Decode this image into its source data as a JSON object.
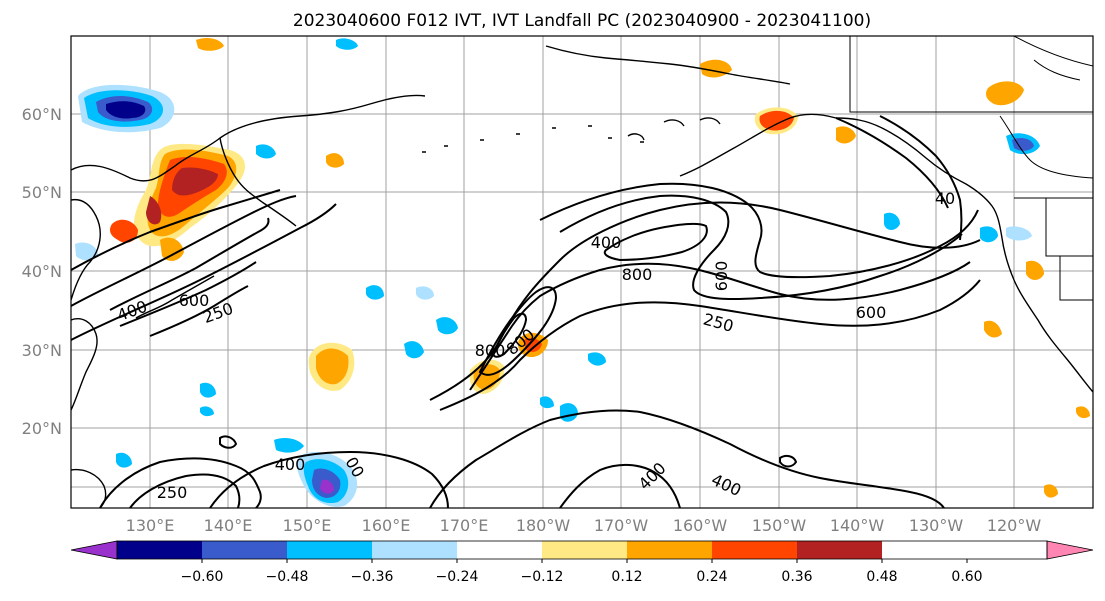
{
  "title": "2023040600 F012 IVT, IVT Landfall PC (2023040900 - 2023041100)",
  "lat_labels": [
    "60°N",
    "50°N",
    "40°N",
    "30°N",
    "20°N"
  ],
  "lon_labels": [
    "130°E",
    "140°E",
    "150°E",
    "160°E",
    "170°E",
    "180°W",
    "170°W",
    "160°W",
    "150°W",
    "140°W",
    "130°W",
    "120°W"
  ],
  "colorbar": {
    "colors": [
      "#9932CC",
      "#00008B",
      "#3A5BCB",
      "#00BFFF",
      "#ADE1FF",
      "#FFFFFF",
      "#FFE985",
      "#FFA500",
      "#FF4500",
      "#B22222",
      "#FF85B2"
    ],
    "tick_labels": [
      "−0.60",
      "−0.48",
      "−0.36",
      "−0.24",
      "−0.12",
      "0.12",
      "0.24",
      "0.36",
      "0.48",
      "0.60"
    ]
  },
  "contour_labels": [
    "400",
    "800",
    "600",
    "250",
    "600",
    "40",
    "400",
    "600",
    "250",
    "800",
    "800",
    "400",
    "250",
    "00",
    "400",
    "400"
  ]
}
